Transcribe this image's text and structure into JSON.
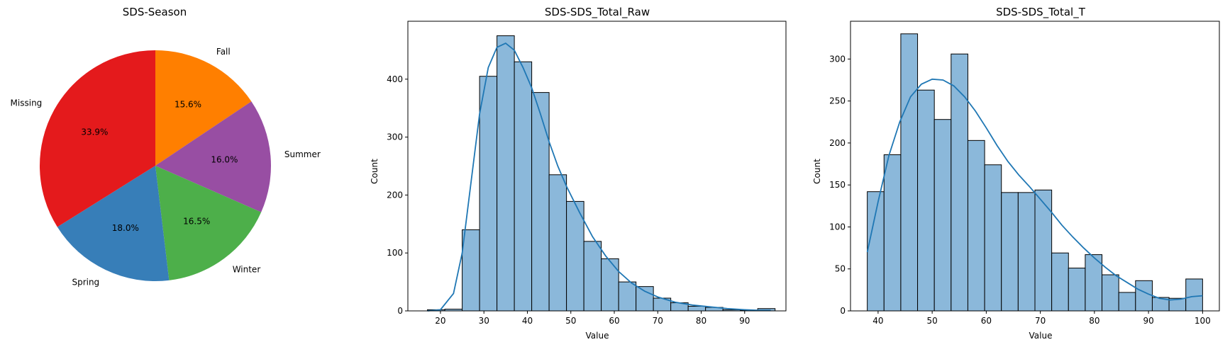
{
  "chart_data": [
    {
      "type": "pie",
      "title": "SDS-Season",
      "labels": [
        "Fall",
        "Summer",
        "Winter",
        "Spring",
        "Missing"
      ],
      "values": [
        15.6,
        16.0,
        16.5,
        18.0,
        33.9
      ],
      "pct_labels": [
        "15.6%",
        "16.0%",
        "16.5%",
        "18.0%",
        "33.9%"
      ],
      "colors": [
        "#ff7f00",
        "#984ea3",
        "#4daf4a",
        "#377eb8",
        "#e41a1c"
      ],
      "start_angle": 90,
      "direction": "clockwise"
    },
    {
      "type": "histogram",
      "title": "SDS-SDS_Total_Raw",
      "xlabel": "Value",
      "ylabel": "Count",
      "xlim": [
        12.5,
        99.5
      ],
      "ylim": [
        0,
        500
      ],
      "xticks": [
        20,
        30,
        40,
        50,
        60,
        70,
        80,
        90
      ],
      "yticks": [
        0,
        100,
        200,
        300,
        400
      ],
      "bin_edges": [
        17,
        21,
        25,
        29,
        33,
        37,
        41,
        45,
        49,
        53,
        57,
        61,
        65,
        69,
        73,
        77,
        81,
        85,
        89,
        93,
        97
      ],
      "counts": [
        2,
        3,
        140,
        405,
        475,
        430,
        377,
        235,
        189,
        120,
        90,
        50,
        42,
        22,
        14,
        8,
        6,
        2,
        1,
        4
      ],
      "kde": {
        "x": [
          17,
          20,
          23,
          25,
          27,
          29,
          31,
          33,
          35,
          37,
          39,
          41,
          43,
          45,
          47,
          49,
          52,
          55,
          58,
          61,
          64,
          67,
          70,
          74,
          78,
          82,
          86,
          90,
          93,
          96
        ],
        "y": [
          0,
          2,
          30,
          100,
          220,
          340,
          420,
          455,
          462,
          450,
          420,
          385,
          340,
          292,
          250,
          215,
          170,
          128,
          95,
          68,
          48,
          34,
          24,
          15,
          10,
          7,
          4,
          2,
          1,
          1
        ]
      },
      "bar_color": "#8bb8da",
      "line_color": "#1f77b4"
    },
    {
      "type": "histogram",
      "title": "SDS-SDS_Total_T",
      "xlabel": "Value",
      "ylabel": "Count",
      "xlim": [
        34.9,
        103.1
      ],
      "ylim": [
        0,
        345
      ],
      "xticks": [
        40,
        50,
        60,
        70,
        80,
        90,
        100
      ],
      "yticks": [
        0,
        50,
        100,
        150,
        200,
        250,
        300
      ],
      "bin_edges": [
        38,
        41.1,
        44.2,
        47.3,
        50.4,
        53.5,
        56.6,
        59.7,
        62.8,
        65.9,
        69.0,
        72.1,
        75.2,
        78.3,
        81.4,
        84.5,
        87.6,
        90.7,
        93.8,
        96.9,
        100
      ],
      "counts": [
        142,
        186,
        330,
        263,
        228,
        306,
        203,
        174,
        141,
        141,
        144,
        69,
        51,
        67,
        43,
        22,
        36,
        16,
        15,
        38
      ],
      "kde": {
        "x": [
          38,
          40,
          42,
          44,
          46,
          48,
          50,
          52,
          54,
          56,
          58,
          60,
          62,
          64,
          66,
          68,
          70,
          72,
          74,
          76,
          78,
          80,
          82,
          84,
          86,
          88,
          90,
          92,
          94,
          96,
          98,
          100
        ],
        "y": [
          70,
          130,
          185,
          225,
          255,
          270,
          276,
          275,
          268,
          255,
          238,
          218,
          197,
          178,
          162,
          148,
          133,
          118,
          102,
          88,
          75,
          63,
          52,
          42,
          34,
          26,
          20,
          15,
          13,
          14,
          17,
          18
        ]
      },
      "bar_color": "#8bb8da",
      "line_color": "#1f77b4"
    }
  ]
}
